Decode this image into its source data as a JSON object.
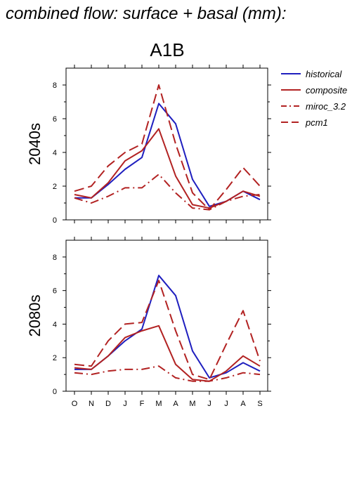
{
  "title": "combined flow: surface + basal (mm):",
  "scenario": "A1B",
  "chart_data": {
    "type": "line",
    "categories": [
      "O",
      "N",
      "D",
      "J",
      "F",
      "M",
      "A",
      "M",
      "J",
      "J",
      "A",
      "S"
    ],
    "ylim": [
      0,
      9
    ],
    "yticks": [
      0,
      2,
      4,
      6,
      8
    ],
    "grid": false,
    "legend_position": "right",
    "legend": [
      {
        "name": "historical",
        "color": "#1f1fbf",
        "dash": "solid"
      },
      {
        "name": "composite",
        "color": "#b22222",
        "dash": "solid"
      },
      {
        "name": "miroc_3.2",
        "color": "#b22222",
        "dash": "dashdot"
      },
      {
        "name": "pcm1",
        "color": "#b22222",
        "dash": "dash"
      }
    ],
    "panels": [
      {
        "label": "2040s",
        "series": [
          {
            "name": "historical",
            "values": [
              1.3,
              1.3,
              2.1,
              3.0,
              3.7,
              6.9,
              5.7,
              2.4,
              0.8,
              1.1,
              1.7,
              1.2
            ]
          },
          {
            "name": "composite",
            "values": [
              1.5,
              1.3,
              2.2,
              3.5,
              4.1,
              5.4,
              2.6,
              0.9,
              0.7,
              1.1,
              1.7,
              1.4
            ]
          },
          {
            "name": "miroc_3.2",
            "values": [
              1.3,
              1.0,
              1.4,
              1.9,
              1.9,
              2.7,
              1.6,
              0.7,
              0.6,
              1.1,
              1.4,
              1.5
            ]
          },
          {
            "name": "pcm1",
            "values": [
              1.7,
              2.0,
              3.2,
              4.0,
              4.5,
              8.0,
              4.5,
              1.6,
              0.6,
              1.8,
              3.1,
              2.0
            ]
          }
        ]
      },
      {
        "label": "2080s",
        "series": [
          {
            "name": "historical",
            "values": [
              1.3,
              1.3,
              2.1,
              3.0,
              3.7,
              6.9,
              5.7,
              2.4,
              0.8,
              1.1,
              1.7,
              1.2
            ]
          },
          {
            "name": "composite",
            "values": [
              1.4,
              1.3,
              2.1,
              3.2,
              3.6,
              3.9,
              1.6,
              0.7,
              0.6,
              1.2,
              2.1,
              1.5
            ]
          },
          {
            "name": "miroc_3.2",
            "values": [
              1.1,
              1.0,
              1.2,
              1.3,
              1.3,
              1.5,
              0.8,
              0.6,
              0.6,
              0.8,
              1.1,
              1.0
            ]
          },
          {
            "name": "pcm1",
            "values": [
              1.6,
              1.5,
              3.0,
              4.0,
              4.1,
              6.6,
              3.6,
              1.0,
              0.7,
              2.8,
              4.8,
              1.8
            ]
          }
        ]
      }
    ]
  }
}
